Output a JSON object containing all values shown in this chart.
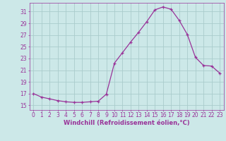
{
  "x": [
    0,
    1,
    2,
    3,
    4,
    5,
    6,
    7,
    8,
    9,
    10,
    11,
    12,
    13,
    14,
    15,
    16,
    17,
    18,
    19,
    20,
    21,
    22,
    23
  ],
  "y": [
    17.0,
    16.4,
    16.1,
    15.8,
    15.6,
    15.5,
    15.5,
    15.6,
    15.7,
    16.9,
    22.2,
    24.0,
    25.8,
    27.5,
    29.3,
    31.3,
    31.8,
    31.4,
    29.5,
    27.1,
    23.2,
    21.8,
    21.7,
    20.5
  ],
  "line_color": "#993399",
  "marker": "+",
  "bg_color": "#cce8e8",
  "grid_color": "#aacccc",
  "xlabel": "Windchill (Refroidissement éolien,°C)",
  "ylabel_ticks": [
    15,
    17,
    19,
    21,
    23,
    25,
    27,
    29,
    31
  ],
  "xlim": [
    -0.5,
    23.5
  ],
  "ylim": [
    14.2,
    32.5
  ],
  "tick_color": "#993399",
  "label_color": "#993399",
  "tick_fontsize": 5.5,
  "xlabel_fontsize": 6.0
}
